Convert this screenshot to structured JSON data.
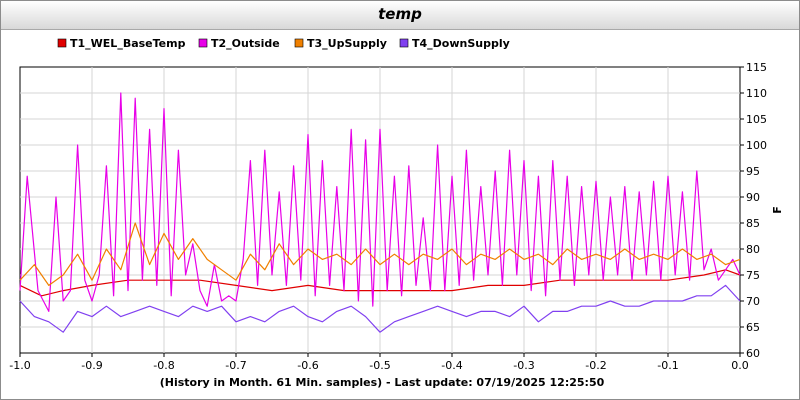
{
  "window": {
    "title": "temp"
  },
  "chart_data": {
    "type": "line",
    "title": "temp",
    "xlabel": "(History in Month. 61 Min. samples) - Last update: 07/19/2025 12:25:50",
    "ylabel": "F",
    "xlim": [
      -1.0,
      0.0
    ],
    "ylim": [
      60,
      115
    ],
    "x_ticks": [
      "-1.0",
      "-0.9",
      "-0.8",
      "-0.7",
      "-0.6",
      "-0.5",
      "-0.4",
      "-0.3",
      "-0.2",
      "-0.1",
      "0.0"
    ],
    "y_ticks": [
      "60",
      "65",
      "70",
      "75",
      "80",
      "85",
      "90",
      "95",
      "100",
      "105",
      "110",
      "115"
    ],
    "grid": true,
    "legend_position": "top",
    "series": [
      {
        "name": "T1_WEL_BaseTemp",
        "color": "#e00000",
        "x": [
          -1.0,
          -0.97,
          -0.94,
          -0.9,
          -0.85,
          -0.8,
          -0.75,
          -0.7,
          -0.65,
          -0.6,
          -0.55,
          -0.5,
          -0.45,
          -0.4,
          -0.35,
          -0.3,
          -0.25,
          -0.2,
          -0.15,
          -0.1,
          -0.05,
          -0.02,
          0.0
        ],
        "y": [
          73,
          71,
          72,
          73,
          74,
          74,
          74,
          73,
          72,
          73,
          72,
          72,
          72,
          72,
          73,
          73,
          74,
          74,
          74,
          74,
          75,
          76,
          75
        ]
      },
      {
        "name": "T2_Outside",
        "color": "#e800e8",
        "x": [
          -1.0,
          -0.99,
          -0.975,
          -0.96,
          -0.95,
          -0.94,
          -0.93,
          -0.92,
          -0.91,
          -0.9,
          -0.89,
          -0.88,
          -0.87,
          -0.86,
          -0.85,
          -0.84,
          -0.83,
          -0.82,
          -0.81,
          -0.8,
          -0.79,
          -0.78,
          -0.77,
          -0.76,
          -0.75,
          -0.74,
          -0.73,
          -0.72,
          -0.71,
          -0.7,
          -0.69,
          -0.68,
          -0.67,
          -0.66,
          -0.65,
          -0.64,
          -0.63,
          -0.62,
          -0.61,
          -0.6,
          -0.59,
          -0.58,
          -0.57,
          -0.56,
          -0.55,
          -0.54,
          -0.53,
          -0.52,
          -0.51,
          -0.5,
          -0.49,
          -0.48,
          -0.47,
          -0.46,
          -0.45,
          -0.44,
          -0.43,
          -0.42,
          -0.41,
          -0.4,
          -0.39,
          -0.38,
          -0.37,
          -0.36,
          -0.35,
          -0.34,
          -0.33,
          -0.32,
          -0.31,
          -0.3,
          -0.29,
          -0.28,
          -0.27,
          -0.26,
          -0.25,
          -0.24,
          -0.23,
          -0.22,
          -0.21,
          -0.2,
          -0.19,
          -0.18,
          -0.17,
          -0.16,
          -0.15,
          -0.14,
          -0.13,
          -0.12,
          -0.11,
          -0.1,
          -0.09,
          -0.08,
          -0.07,
          -0.06,
          -0.05,
          -0.04,
          -0.03,
          -0.02,
          -0.01,
          0.0
        ],
        "y": [
          72,
          94,
          72,
          68,
          90,
          70,
          72,
          100,
          74,
          70,
          75,
          96,
          71,
          110,
          72,
          109,
          74,
          103,
          73,
          107,
          71,
          99,
          75,
          81,
          72,
          69,
          77,
          70,
          71,
          70,
          78,
          97,
          73,
          99,
          75,
          91,
          73,
          96,
          74,
          102,
          71,
          97,
          73,
          92,
          72,
          103,
          70,
          101,
          69,
          103,
          72,
          94,
          71,
          96,
          73,
          86,
          72,
          100,
          72,
          94,
          73,
          99,
          74,
          92,
          75,
          95,
          73,
          99,
          75,
          97,
          72,
          94,
          71,
          97,
          74,
          94,
          73,
          92,
          75,
          93,
          74,
          90,
          75,
          92,
          74,
          91,
          75,
          93,
          74,
          94,
          75,
          91,
          74,
          95,
          76,
          80,
          74,
          76,
          78,
          75
        ]
      },
      {
        "name": "T3_UpSupply",
        "color": "#f08000",
        "x": [
          -1.0,
          -0.98,
          -0.96,
          -0.94,
          -0.92,
          -0.9,
          -0.88,
          -0.86,
          -0.84,
          -0.82,
          -0.8,
          -0.78,
          -0.76,
          -0.74,
          -0.72,
          -0.7,
          -0.68,
          -0.66,
          -0.64,
          -0.62,
          -0.6,
          -0.58,
          -0.56,
          -0.54,
          -0.52,
          -0.5,
          -0.48,
          -0.46,
          -0.44,
          -0.42,
          -0.4,
          -0.38,
          -0.36,
          -0.34,
          -0.32,
          -0.3,
          -0.28,
          -0.26,
          -0.24,
          -0.22,
          -0.2,
          -0.18,
          -0.16,
          -0.14,
          -0.12,
          -0.1,
          -0.08,
          -0.06,
          -0.04,
          -0.02,
          0.0
        ],
        "y": [
          74,
          77,
          73,
          75,
          79,
          74,
          80,
          76,
          85,
          77,
          83,
          78,
          82,
          78,
          76,
          74,
          79,
          76,
          81,
          77,
          80,
          78,
          79,
          77,
          80,
          77,
          79,
          77,
          79,
          78,
          80,
          77,
          79,
          78,
          80,
          78,
          79,
          77,
          80,
          78,
          79,
          78,
          80,
          78,
          79,
          78,
          80,
          78,
          79,
          77,
          78
        ]
      },
      {
        "name": "T4_DownSupply",
        "color": "#8040f0",
        "x": [
          -1.0,
          -0.98,
          -0.96,
          -0.94,
          -0.92,
          -0.9,
          -0.88,
          -0.86,
          -0.84,
          -0.82,
          -0.8,
          -0.78,
          -0.76,
          -0.74,
          -0.72,
          -0.7,
          -0.68,
          -0.66,
          -0.64,
          -0.62,
          -0.6,
          -0.58,
          -0.56,
          -0.54,
          -0.52,
          -0.5,
          -0.48,
          -0.46,
          -0.44,
          -0.42,
          -0.4,
          -0.38,
          -0.36,
          -0.34,
          -0.32,
          -0.3,
          -0.28,
          -0.26,
          -0.24,
          -0.22,
          -0.2,
          -0.18,
          -0.16,
          -0.14,
          -0.12,
          -0.1,
          -0.08,
          -0.06,
          -0.04,
          -0.02,
          0.0
        ],
        "y": [
          70,
          67,
          66,
          64,
          68,
          67,
          69,
          67,
          68,
          69,
          68,
          67,
          69,
          68,
          69,
          66,
          67,
          66,
          68,
          69,
          67,
          66,
          68,
          69,
          67,
          64,
          66,
          67,
          68,
          69,
          68,
          67,
          68,
          68,
          67,
          69,
          66,
          68,
          68,
          69,
          69,
          70,
          69,
          69,
          70,
          70,
          70,
          71,
          71,
          73,
          70
        ]
      }
    ]
  }
}
